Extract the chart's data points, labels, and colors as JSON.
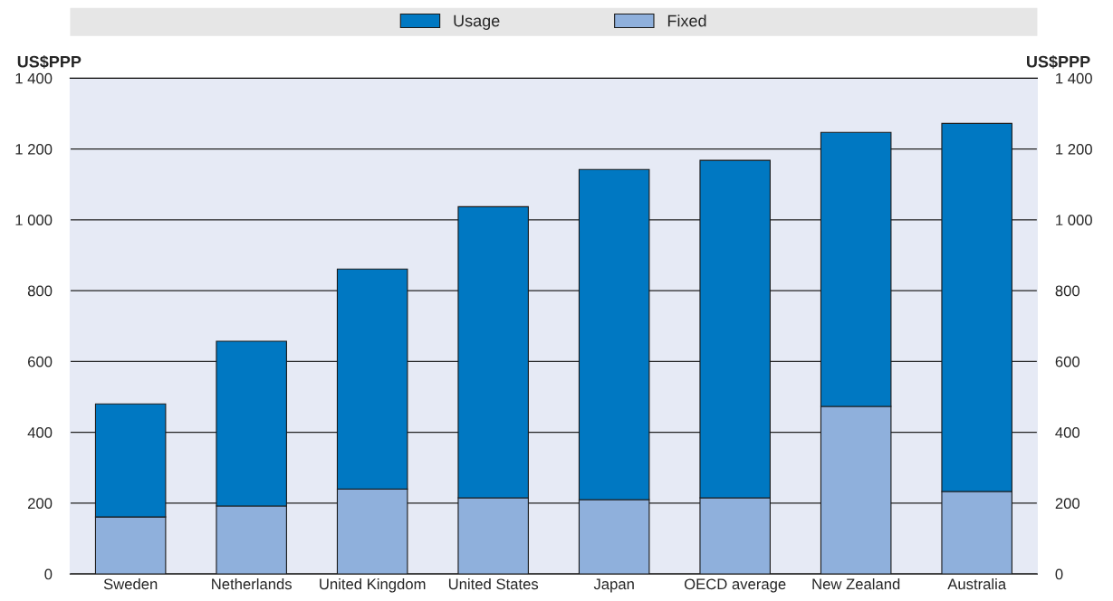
{
  "chart_data": {
    "type": "bar",
    "stacked": true,
    "ylabel": "US$PPP",
    "y2label": "US$PPP",
    "categories": [
      "Sweden",
      "Netherlands",
      "United Kingdom",
      "United States",
      "Japan",
      "OECD average",
      "New Zealand",
      "Australia"
    ],
    "series": [
      {
        "name": "Fixed",
        "color": "#8fb0dc",
        "values": [
          161,
          192,
          240,
          215,
          210,
          215,
          473,
          233
        ]
      },
      {
        "name": "Usage",
        "color": "#0078c2",
        "values": [
          319,
          465,
          621,
          822,
          932,
          953,
          774,
          1039
        ]
      }
    ],
    "ylim": [
      0,
      1400
    ],
    "yticks": [
      0,
      200,
      400,
      600,
      800,
      {
        "value": 1000,
        "label": "1 000"
      },
      {
        "value": 1200,
        "label": "1 200"
      },
      {
        "value": 1400,
        "label": "1 400"
      }
    ],
    "y2lim": [
      0,
      1400
    ],
    "y2ticks": [
      0,
      200,
      400,
      600,
      800,
      {
        "value": 1000,
        "label": "1 000"
      },
      {
        "value": 1200,
        "label": "1 200"
      },
      {
        "value": 1400,
        "label": "1 400"
      }
    ],
    "grid": "y",
    "legend": "top"
  }
}
